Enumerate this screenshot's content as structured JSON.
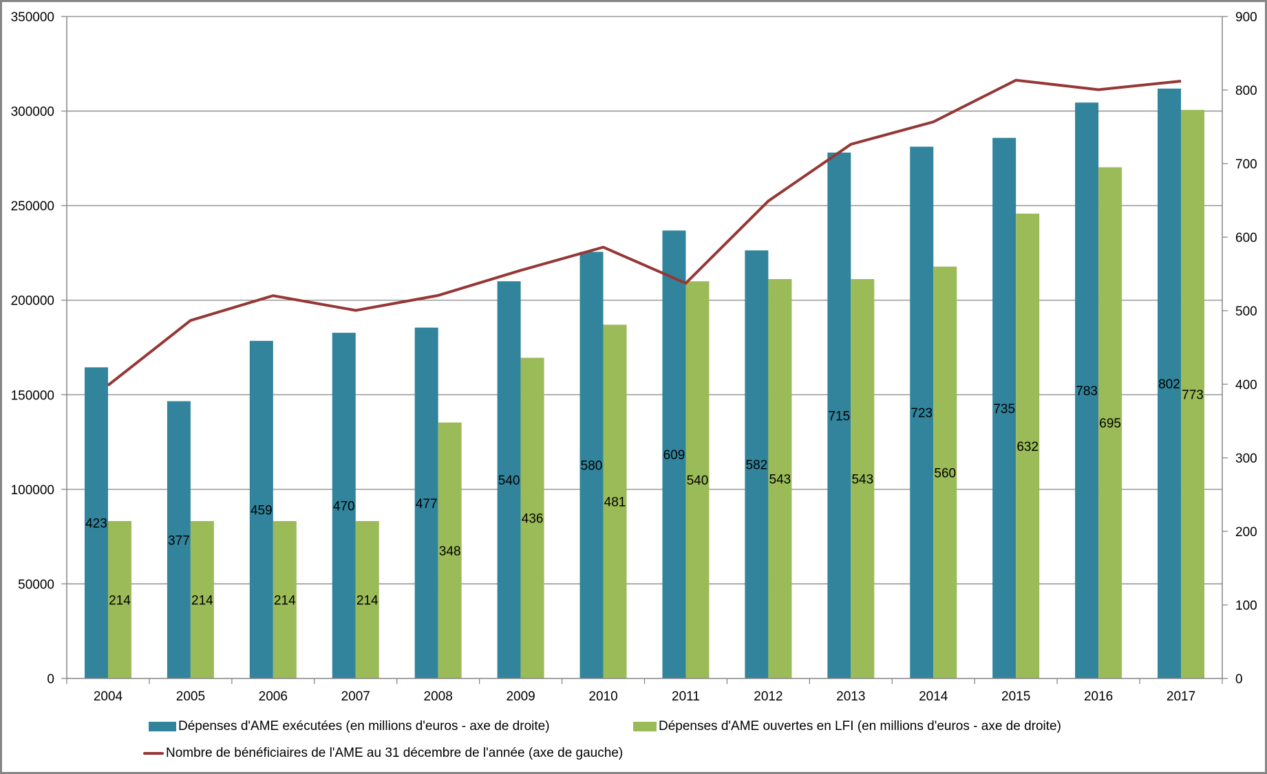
{
  "chart_data": {
    "type": "bar",
    "title": "",
    "categories": [
      "2004",
      "2005",
      "2006",
      "2007",
      "2008",
      "2009",
      "2010",
      "2011",
      "2012",
      "2013",
      "2014",
      "2015",
      "2016",
      "2017"
    ],
    "series": [
      {
        "name": "Dépenses d'AME exécutées (en millions d'euros - axe de droite)",
        "type": "bar",
        "axis": "right",
        "color": "#31849B",
        "values": [
          423,
          377,
          459,
          470,
          477,
          540,
          580,
          609,
          582,
          715,
          723,
          735,
          783,
          802
        ],
        "data_labels": [
          "423",
          "377",
          "459",
          "470",
          "477",
          "540",
          "580",
          "609",
          "582",
          "715",
          "723",
          "735",
          "783",
          "802"
        ]
      },
      {
        "name": "Dépenses d'AME ouvertes en LFI (en millions d'euros - axe de droite)",
        "type": "bar",
        "axis": "right",
        "color": "#9BBB59",
        "values": [
          214,
          214,
          214,
          214,
          348,
          436,
          481,
          540,
          543,
          543,
          560,
          632,
          695,
          773
        ],
        "data_labels": [
          "214",
          "214",
          "214",
          "214",
          "348",
          "436",
          "481",
          "540",
          "543",
          "543",
          "560",
          "632",
          "695",
          "773"
        ]
      },
      {
        "name": "Nombre de bénéficiaires de l'AME au 31 décembre de l'année (axe de gauche)",
        "type": "line",
        "axis": "left",
        "color": "#953735",
        "values": [
          154971,
          189284,
          202396,
          194615,
          202503,
          215763,
          228036,
          208974,
          252437,
          282425,
          294298,
          316314,
          311310,
          315835
        ]
      }
    ],
    "left_axis": {
      "min": 0,
      "max": 350000,
      "step": 50000,
      "tick_labels": [
        "0",
        "50000",
        "100000",
        "150000",
        "200000",
        "250000",
        "300000",
        "350000"
      ]
    },
    "right_axis": {
      "min": 0,
      "max": 900,
      "step": 100,
      "tick_labels": [
        "0",
        "100",
        "200",
        "300",
        "400",
        "500",
        "600",
        "700",
        "800",
        "900"
      ]
    },
    "xlabel": "",
    "ylabel_left": "",
    "ylabel_right": "",
    "grid": "horizontal (left axis)",
    "legend_position": "bottom"
  },
  "legend": {
    "items": [
      {
        "label": "Dépenses d'AME exécutées (en millions d'euros - axe de droite)",
        "color": "#31849B",
        "kind": "bar"
      },
      {
        "label": "Dépenses d'AME ouvertes en LFI (en millions d'euros - axe de droite)",
        "color": "#9BBB59",
        "kind": "bar"
      },
      {
        "label": "Nombre de bénéficiaires de l'AME au 31 décembre de l'année (axe de gauche)",
        "color": "#953735",
        "kind": "line"
      }
    ]
  },
  "colors": {
    "axis": "#868686",
    "grid": "#868686",
    "frame": "#868686"
  }
}
